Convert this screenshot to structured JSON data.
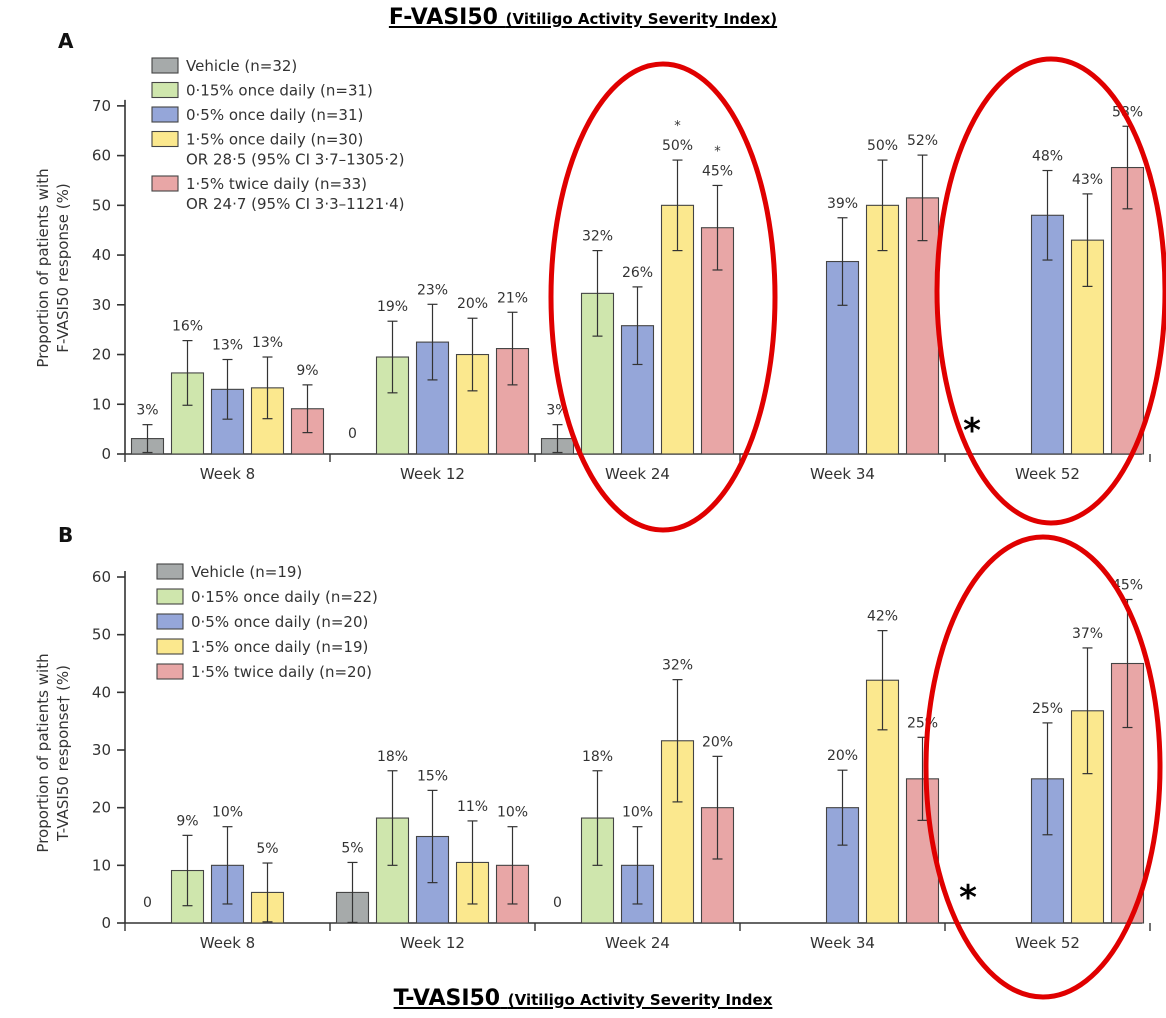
{
  "title_top": {
    "main": "F-VASI50",
    "sub": "(Vitiligo Activity Severity Index)"
  },
  "title_bottom": {
    "main": "T-VASI50",
    "sub": "(Vitiligo Activity Severity Index"
  },
  "colors": {
    "vehicle": "#a6aaaa",
    "low": "#cfe6ad",
    "mid": "#95a6d9",
    "high_once": "#fbe88e",
    "high_twice": "#e8a6a6",
    "highlight_ring": "#e00000"
  },
  "chart_data": [
    {
      "type": "bar",
      "panel": "A",
      "ylabel": [
        "Proportion of patients with",
        "F-VASI50 response (%)"
      ],
      "ylim": [
        0,
        75
      ],
      "yticks": [
        0,
        10,
        20,
        30,
        40,
        50,
        60,
        70
      ],
      "categories": [
        "Week 8",
        "Week 12",
        "Week 24",
        "Week 34",
        "Week 52"
      ],
      "legend": [
        {
          "key": "vehicle",
          "label": "Vehicle (n=32)"
        },
        {
          "key": "low",
          "label": "0·15% once daily (n=31)"
        },
        {
          "key": "mid",
          "label": "0·5% once daily (n=31)"
        },
        {
          "key": "high_once",
          "label": "1·5% once daily (n=30)",
          "note": "OR 28·5 (95% CI 3·7–1305·2)"
        },
        {
          "key": "high_twice",
          "label": "1·5% twice daily (n=33)",
          "note": "OR 24·7 (95% CI 3·3–1121·4)"
        }
      ],
      "series": [
        {
          "key": "vehicle",
          "values": [
            3.1,
            0,
            3.1,
            null,
            null
          ],
          "err": [
            2.8,
            0,
            2.8,
            null,
            null
          ],
          "labels": [
            "3%",
            "0",
            "3%",
            "",
            ""
          ]
        },
        {
          "key": "low",
          "values": [
            16.3,
            19.5,
            32.3,
            null,
            null
          ],
          "err": [
            6.5,
            7.2,
            8.6,
            null,
            null
          ],
          "labels": [
            "16%",
            "19%",
            "32%",
            "",
            ""
          ]
        },
        {
          "key": "mid",
          "values": [
            13.0,
            22.5,
            25.8,
            38.7,
            48.0
          ],
          "err": [
            6.0,
            7.6,
            7.8,
            8.8,
            9.0
          ],
          "labels": [
            "13%",
            "23%",
            "26%",
            "39%",
            "48%"
          ]
        },
        {
          "key": "high_once",
          "values": [
            13.3,
            20.0,
            50.0,
            50.0,
            43.0
          ],
          "err": [
            6.2,
            7.3,
            9.1,
            9.1,
            9.3
          ],
          "labels": [
            "13%",
            "20%",
            "50%",
            "50%",
            "43%"
          ]
        },
        {
          "key": "high_twice",
          "values": [
            9.1,
            21.2,
            45.5,
            51.5,
            57.6
          ],
          "err": [
            4.8,
            7.3,
            8.5,
            8.6,
            8.3
          ],
          "labels": [
            "9%",
            "21%",
            "45%",
            "52%",
            "58%"
          ]
        }
      ],
      "significance_marks": [
        {
          "category": "Week 24",
          "series": "high_once",
          "text": "*"
        },
        {
          "category": "Week 24",
          "series": "high_twice",
          "text": "*"
        }
      ],
      "asterisk": {
        "category": "Week 52",
        "text": "*"
      },
      "highlighted_categories": [
        "Week 24",
        "Week 52"
      ]
    },
    {
      "type": "bar",
      "panel": "B",
      "ylabel": [
        "Proportion of patients with",
        "T-VASI50 response† (%)"
      ],
      "ylim": [
        0,
        60
      ],
      "yticks": [
        0,
        10,
        20,
        30,
        40,
        50,
        60
      ],
      "categories": [
        "Week 8",
        "Week 12",
        "Week 24",
        "Week 34",
        "Week 52"
      ],
      "legend": [
        {
          "key": "vehicle",
          "label": "Vehicle (n=19)"
        },
        {
          "key": "low",
          "label": "0·15% once daily (n=22)"
        },
        {
          "key": "mid",
          "label": "0·5% once daily (n=20)"
        },
        {
          "key": "high_once",
          "label": "1·5% once daily (n=19)"
        },
        {
          "key": "high_twice",
          "label": "1·5% twice daily (n=20)"
        }
      ],
      "series": [
        {
          "key": "vehicle",
          "values": [
            0,
            5.3,
            0,
            null,
            null
          ],
          "err": [
            0,
            5.2,
            0,
            null,
            null
          ],
          "labels": [
            "0",
            "5%",
            "0",
            "",
            ""
          ]
        },
        {
          "key": "low",
          "values": [
            9.1,
            18.2,
            18.2,
            null,
            null
          ],
          "err": [
            6.1,
            8.2,
            8.2,
            null,
            null
          ],
          "labels": [
            "9%",
            "18%",
            "18%",
            "",
            ""
          ]
        },
        {
          "key": "mid",
          "values": [
            10.0,
            15.0,
            10.0,
            20.0,
            25.0
          ],
          "err": [
            6.7,
            8.0,
            6.7,
            6.5,
            9.7
          ],
          "labels": [
            "10%",
            "15%",
            "10%",
            "20%",
            "25%"
          ]
        },
        {
          "key": "high_once",
          "values": [
            5.3,
            10.5,
            31.6,
            42.1,
            36.8
          ],
          "err": [
            5.1,
            7.2,
            10.6,
            8.6,
            10.9
          ],
          "labels": [
            "5%",
            "11%",
            "32%",
            "42%",
            "37%"
          ]
        },
        {
          "key": "high_twice",
          "values": [
            null,
            10.0,
            20.0,
            25.0,
            45.0
          ],
          "err": [
            null,
            6.7,
            8.9,
            7.2,
            11.1
          ],
          "labels": [
            "",
            "10%",
            "20%",
            "25%",
            "45%"
          ]
        }
      ],
      "asterisk": {
        "category": "Week 52",
        "text": "*"
      },
      "highlighted_categories": [
        "Week 52"
      ]
    }
  ]
}
